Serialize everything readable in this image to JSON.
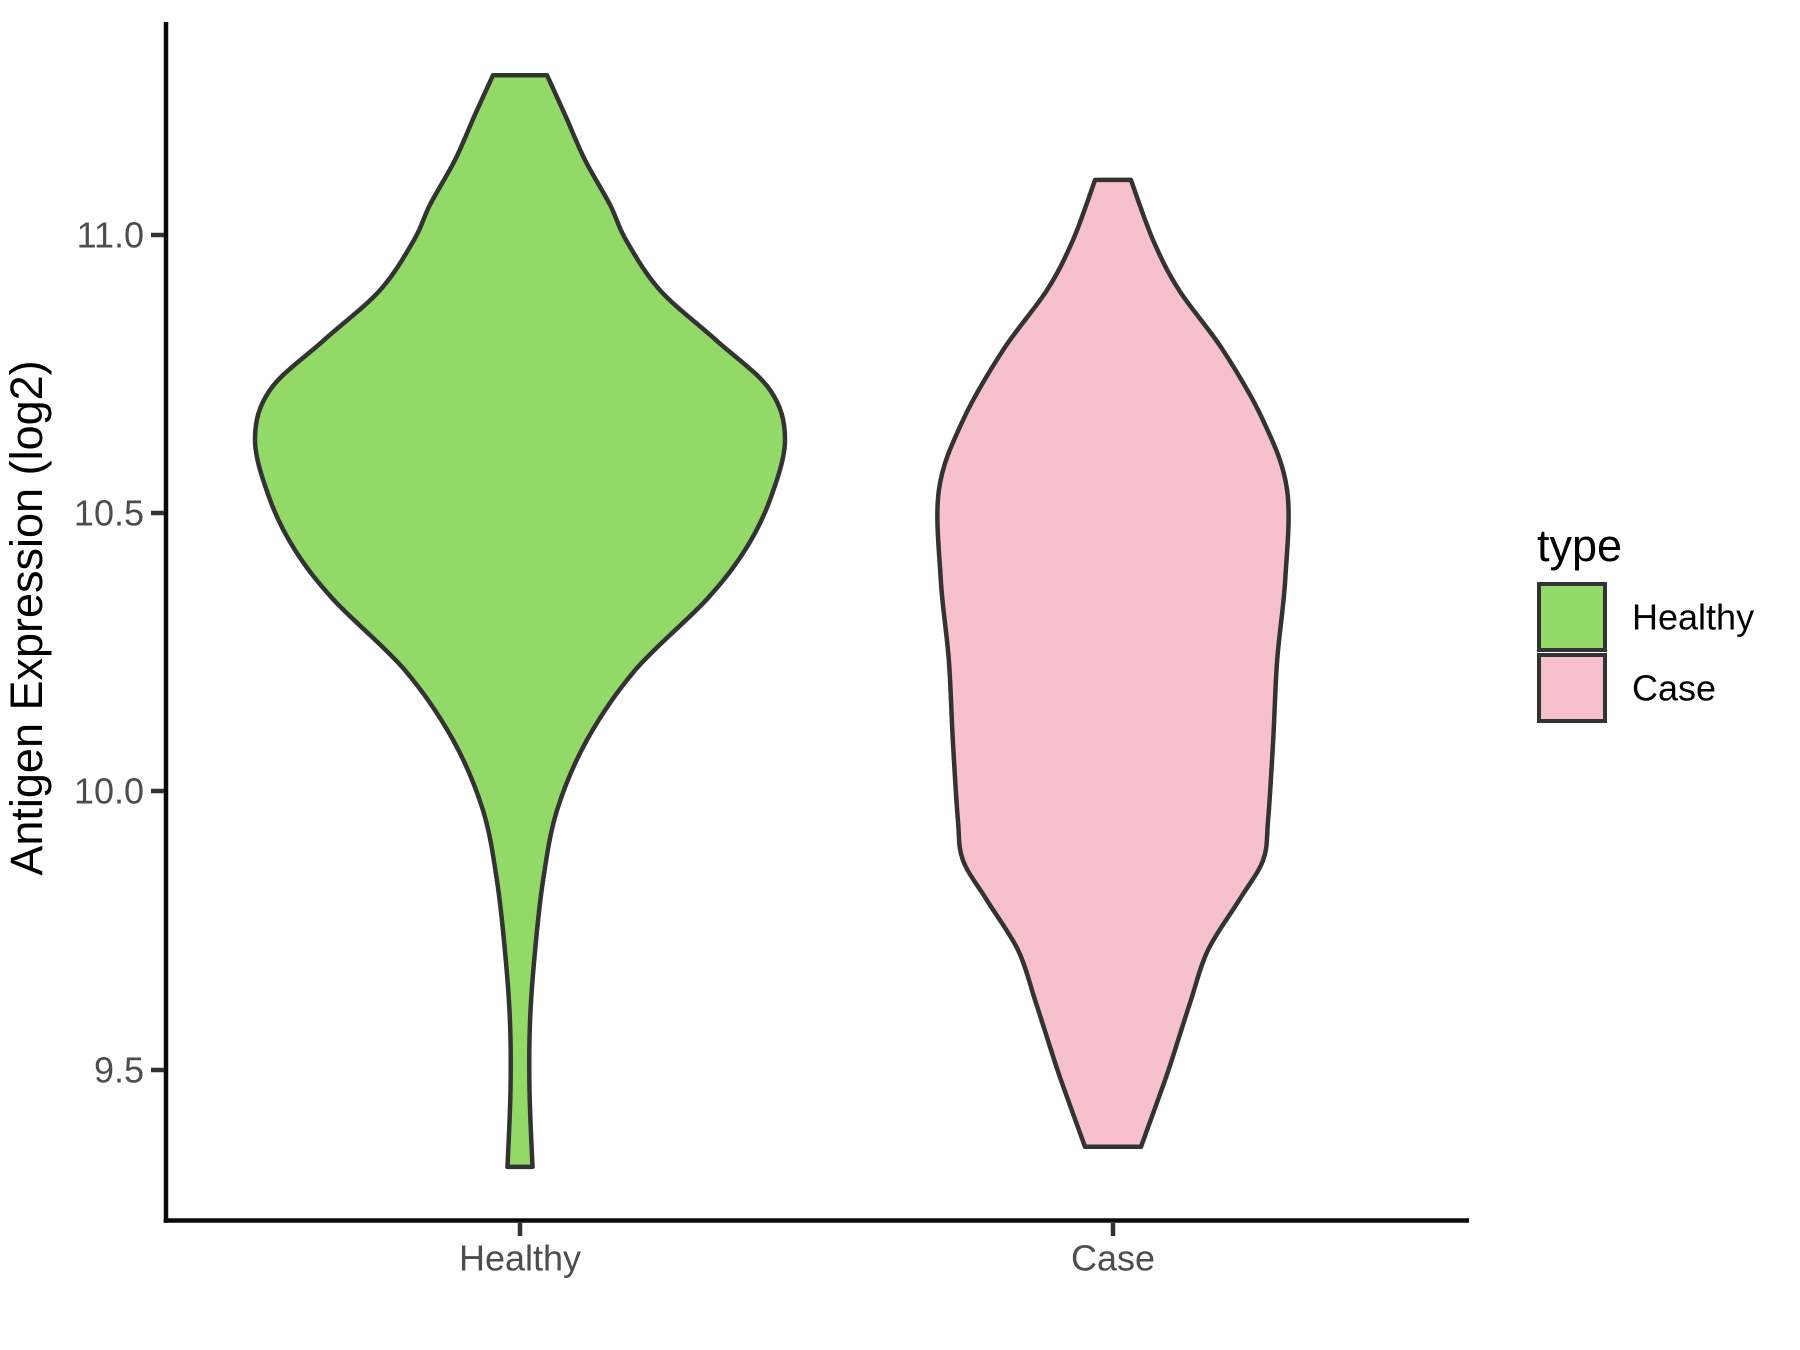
{
  "chart_data": {
    "type": "violin",
    "title": "",
    "xlabel": "",
    "ylabel": "Antigen Expression (log2)",
    "categories": [
      "Healthy",
      "Case"
    ],
    "y_tick_labels": [
      "11.0",
      "10.5",
      "10.0",
      "9.5"
    ],
    "y_tick_values": [
      11.0,
      10.5,
      10.0,
      9.5
    ],
    "ylim": [
      9.23,
      11.38
    ],
    "grid": "off",
    "legend": {
      "title": "type",
      "position": "right",
      "entries": [
        {
          "label": "Healthy",
          "color": "#92D968"
        },
        {
          "label": "Case",
          "color": "#F7C1CB"
        }
      ]
    },
    "series": [
      {
        "name": "Healthy",
        "color": "#92D968",
        "relative_max_width": 1.0,
        "value_range": [
          9.326,
          11.287
        ],
        "peak_value": 10.63,
        "profile": [
          [
            11.287,
            0.102
          ],
          [
            11.216,
            0.17
          ],
          [
            11.135,
            0.245
          ],
          [
            11.054,
            0.34
          ],
          [
            10.991,
            0.4
          ],
          [
            10.901,
            0.528
          ],
          [
            10.811,
            0.74
          ],
          [
            10.722,
            0.943
          ],
          [
            10.632,
            1.0
          ],
          [
            10.524,
            0.943
          ],
          [
            10.434,
            0.849
          ],
          [
            10.344,
            0.702
          ],
          [
            10.218,
            0.434
          ],
          [
            10.093,
            0.253
          ],
          [
            9.967,
            0.14
          ],
          [
            9.841,
            0.087
          ],
          [
            9.715,
            0.057
          ],
          [
            9.59,
            0.038
          ],
          [
            9.464,
            0.036
          ],
          [
            9.326,
            0.047
          ]
        ]
      },
      {
        "name": "Case",
        "color": "#F7C1CB",
        "relative_max_width": 0.657,
        "value_range": [
          9.362,
          11.099
        ],
        "peak_value": 10.54,
        "profile": [
          [
            11.099,
            0.103
          ],
          [
            10.991,
            0.23
          ],
          [
            10.901,
            0.379
          ],
          [
            10.793,
            0.632
          ],
          [
            10.667,
            0.862
          ],
          [
            10.542,
            1.0
          ],
          [
            10.38,
            0.989
          ],
          [
            10.237,
            0.943
          ],
          [
            10.093,
            0.92
          ],
          [
            9.949,
            0.891
          ],
          [
            9.877,
            0.862
          ],
          [
            9.805,
            0.724
          ],
          [
            9.716,
            0.546
          ],
          [
            9.626,
            0.448
          ],
          [
            9.536,
            0.356
          ],
          [
            9.482,
            0.299
          ],
          [
            9.362,
            0.161
          ]
        ]
      }
    ]
  }
}
